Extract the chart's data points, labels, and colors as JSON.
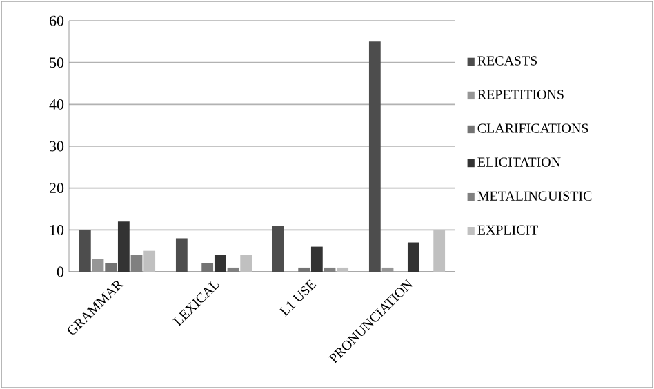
{
  "chart_data": {
    "type": "bar",
    "categories": [
      "GRAMMAR",
      "LEXICAL",
      "L1 USE",
      "PRONUNCIATION"
    ],
    "series": [
      {
        "name": "RECASTS",
        "color": "#4d4d4d",
        "values": [
          10,
          8,
          11,
          55
        ]
      },
      {
        "name": "REPETITIONS",
        "color": "#969696",
        "values": [
          3,
          0,
          0,
          1
        ]
      },
      {
        "name": "CLARIFICATIONS",
        "color": "#737373",
        "values": [
          2,
          2,
          1,
          0
        ]
      },
      {
        "name": "ELICITATION",
        "color": "#333333",
        "values": [
          12,
          4,
          6,
          7
        ]
      },
      {
        "name": "METALINGUISTIC",
        "color": "#808080",
        "values": [
          4,
          1,
          1,
          0
        ]
      },
      {
        "name": "EXPLICIT",
        "color": "#c0c0c0",
        "values": [
          5,
          4,
          1,
          10
        ]
      }
    ],
    "ylim": [
      0,
      60
    ],
    "yticks": [
      0,
      10,
      20,
      30,
      40,
      50,
      60
    ],
    "grid": "y",
    "legend": "right"
  }
}
